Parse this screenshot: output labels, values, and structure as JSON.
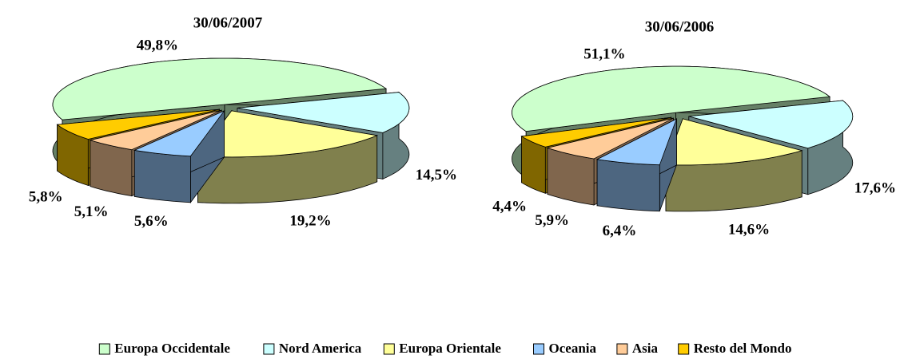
{
  "chart_data": [
    {
      "type": "pie",
      "title": "30/06/2007",
      "categories": [
        "Europa Occidentale",
        "Nord America",
        "Europa Orientale",
        "Oceania",
        "Asia",
        "Resto del Mondo"
      ],
      "values": [
        49.8,
        14.5,
        19.2,
        5.6,
        5.1,
        5.8
      ],
      "value_labels": [
        "49,8%",
        "14,5%",
        "19,2%",
        "5,6%",
        "5,1%",
        "5,8%"
      ],
      "colors": [
        "#ccffcc",
        "#ccffff",
        "#ffff99",
        "#99ccff",
        "#ffcc99",
        "#ffcc00"
      ],
      "legend": "bottom"
    },
    {
      "type": "pie",
      "title": "30/06/2006",
      "categories": [
        "Europa Occidentale",
        "Nord America",
        "Europa Orientale",
        "Oceania",
        "Asia",
        "Resto del Mondo"
      ],
      "values": [
        51.1,
        17.6,
        14.6,
        6.4,
        5.9,
        4.4
      ],
      "value_labels": [
        "51,1%",
        "17,6%",
        "14,6%",
        "6,4%",
        "5,9%",
        "4,4%"
      ],
      "colors": [
        "#ccffcc",
        "#ccffff",
        "#ffff99",
        "#99ccff",
        "#ffcc99",
        "#ffcc00"
      ],
      "legend": "bottom"
    }
  ]
}
